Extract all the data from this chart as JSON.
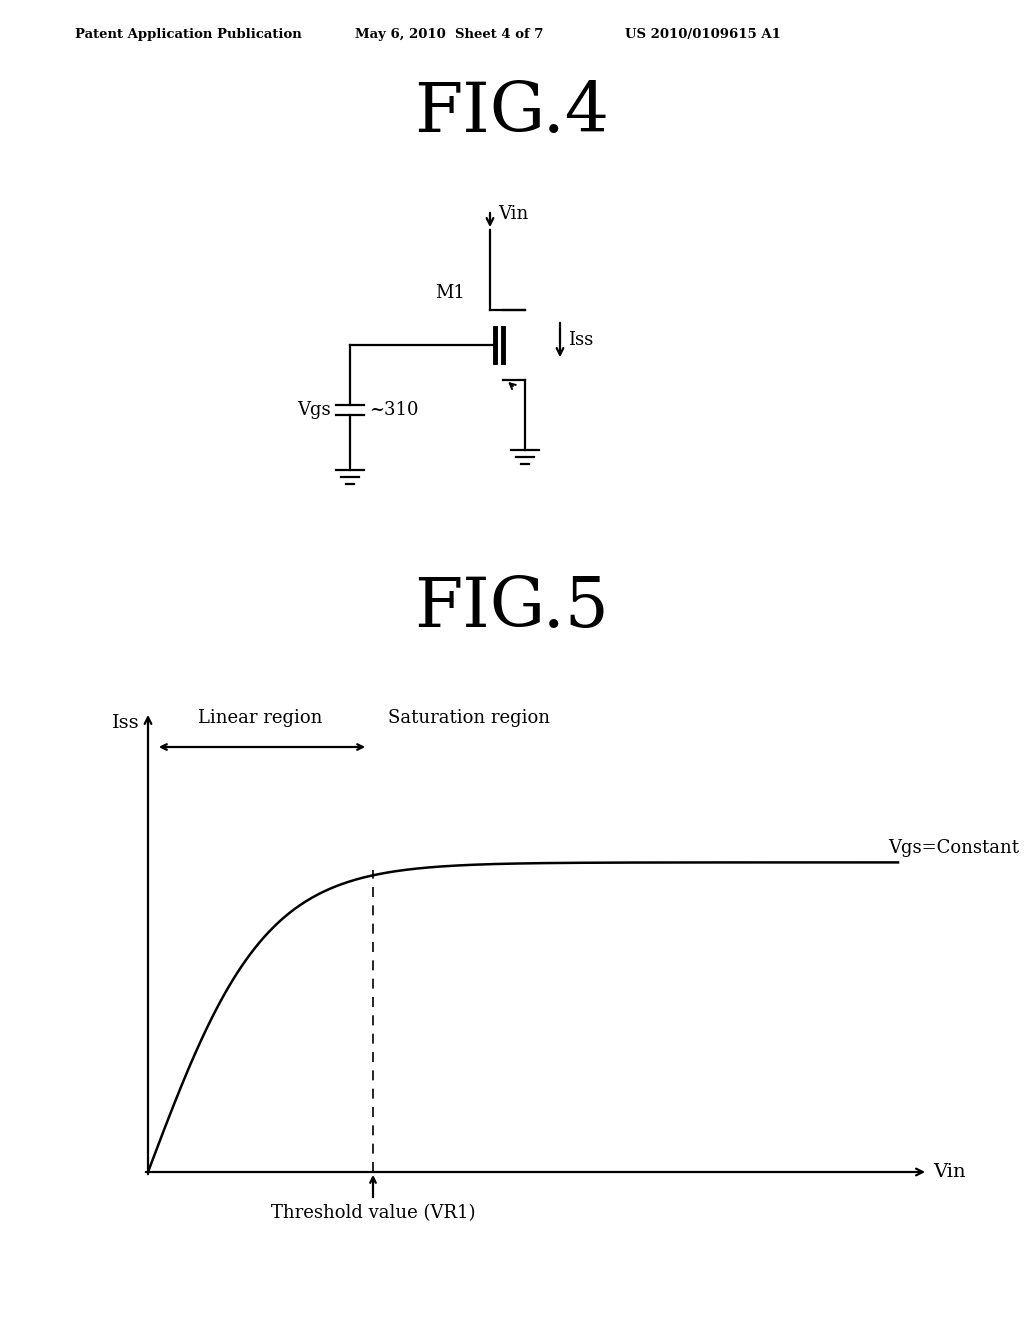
{
  "background_color": "#ffffff",
  "header_text": "Patent Application Publication",
  "header_date": "May 6, 2010",
  "header_sheet": "Sheet 4 of 7",
  "header_patent": "US 2010/0109615 A1",
  "fig4_title": "FIG.4",
  "fig5_title": "FIG.5",
  "fig4_labels": {
    "Vin": "Vin",
    "M1": "M1",
    "Iss": "Iss",
    "Vgs": "Vgs",
    "ref": "310"
  },
  "fig5_labels": {
    "yaxis": "Iss",
    "xaxis": "Vin",
    "linear": "Linear region",
    "saturation": "Saturation region",
    "vgs_const": "Vgs=Constant",
    "threshold": "Threshold value (VR1)"
  },
  "line_color": "#000000",
  "text_color": "#000000"
}
